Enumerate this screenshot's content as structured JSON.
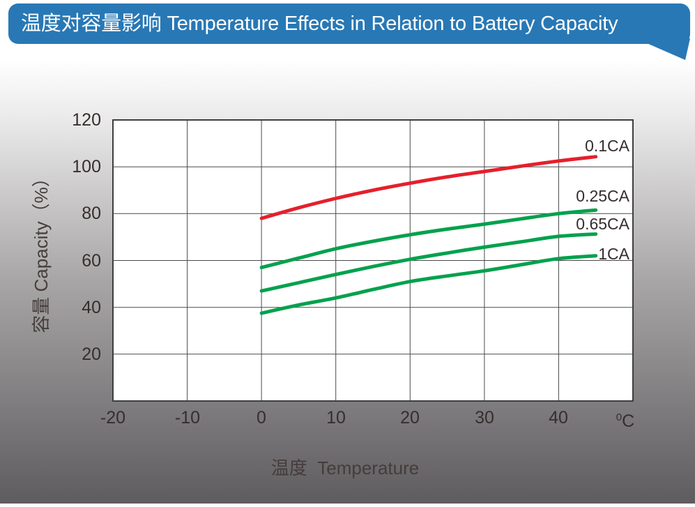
{
  "banner": {
    "title": "温度对容量影响 Temperature Effects in Relation to Battery Capacity",
    "bg_color": "#2878b5",
    "text_color": "#ffffff"
  },
  "chart_data": {
    "type": "line",
    "xlabel": "温度  Temperature",
    "ylabel": "容量 Capacity（%）",
    "x_unit": {
      "sup": "0",
      "base": "C"
    },
    "xlim": [
      -20,
      50
    ],
    "ylim": [
      0,
      120
    ],
    "xticks": [
      -20,
      -10,
      0,
      10,
      20,
      30,
      40
    ],
    "yticks": [
      120,
      100,
      80,
      60,
      40,
      20
    ],
    "grid": true,
    "grid_color": "#4a4a4a",
    "border_color": "#3e3e3e",
    "plot_bg": "#ffffff",
    "legend_position": "right-inline",
    "series": [
      {
        "name": "0.1CA",
        "color": "#e4202c",
        "x": [
          0,
          5,
          10,
          15,
          20,
          25,
          30,
          35,
          40,
          45
        ],
        "values": [
          78,
          82.5,
          86.5,
          90,
          93,
          95.7,
          98,
          100.3,
          102.5,
          104.3
        ]
      },
      {
        "name": "0.25CA",
        "color": "#04a14e",
        "x": [
          0,
          5,
          10,
          15,
          20,
          25,
          30,
          35,
          40,
          45
        ],
        "values": [
          57,
          61,
          65,
          68.2,
          71,
          73.4,
          75.5,
          77.8,
          80,
          81.5
        ]
      },
      {
        "name": "0.65CA",
        "color": "#04a14e",
        "x": [
          0,
          5,
          10,
          15,
          20,
          25,
          30,
          35,
          40,
          45
        ],
        "values": [
          47,
          50.5,
          54,
          57.4,
          60.5,
          63.2,
          65.7,
          68,
          70.3,
          71.3
        ]
      },
      {
        "name": "1CA",
        "color": "#04a14e",
        "x": [
          0,
          5,
          10,
          15,
          20,
          25,
          30,
          35,
          40,
          45
        ],
        "values": [
          37.5,
          41,
          44,
          47.6,
          51,
          53.4,
          55.6,
          58.2,
          60.8,
          62
        ]
      }
    ]
  }
}
